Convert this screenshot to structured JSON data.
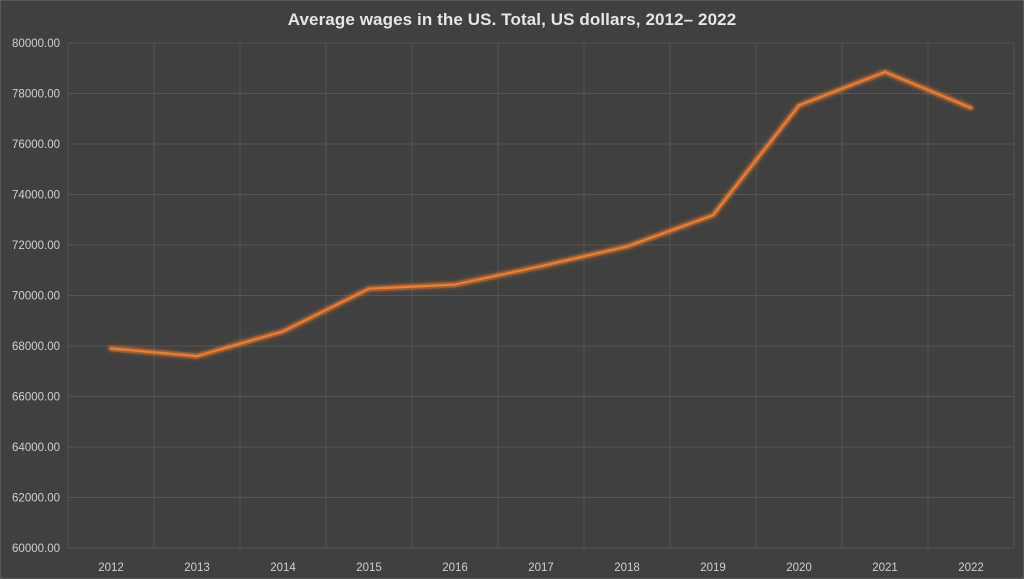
{
  "chart_data": {
    "type": "line",
    "title": "Average wages in the US. Total, US dollars, 2012– 2022",
    "xlabel": "",
    "ylabel": "",
    "categories": [
      "2012",
      "2013",
      "2014",
      "2015",
      "2016",
      "2017",
      "2018",
      "2019",
      "2020",
      "2021",
      "2022"
    ],
    "series": [
      {
        "name": "Average wages",
        "values": [
          67900,
          67600,
          68580,
          70270,
          70430,
          71160,
          71940,
          73180,
          77530,
          78850,
          77430
        ]
      }
    ],
    "ylim": [
      60000,
      80000
    ],
    "yticks": [
      60000,
      62000,
      64000,
      66000,
      68000,
      70000,
      72000,
      74000,
      76000,
      78000,
      80000
    ],
    "ytick_labels": [
      "60000.00",
      "62000.00",
      "64000.00",
      "66000.00",
      "68000.00",
      "70000.00",
      "72000.00",
      "74000.00",
      "76000.00",
      "78000.00",
      "80000.00"
    ],
    "grid": true,
    "colors": {
      "background": "#404040",
      "line": "#ed7d31",
      "line_glow": "#ed7d31",
      "grid": "#555555",
      "text": "#d0d0d0"
    }
  }
}
